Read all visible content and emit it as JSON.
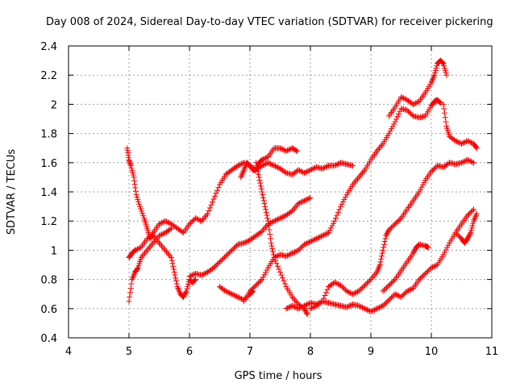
{
  "chart_data": {
    "type": "scatter",
    "title": "Day 008 of 2024, Sidereal Day-to-day VTEC variation (SDTVAR) for receiver pickering",
    "xlabel": "GPS time / hours",
    "ylabel": "SDTVAR / TECUs",
    "xlim": [
      4,
      11
    ],
    "ylim": [
      0.4,
      2.4
    ],
    "xticks": [
      "4",
      "5",
      "6",
      "7",
      "8",
      "9",
      "10",
      "11"
    ],
    "yticks": [
      "0.4",
      "0.6",
      "0.8",
      "1",
      "1.2",
      "1.4",
      "1.6",
      "1.8",
      "2",
      "2.2",
      "2.4"
    ],
    "grid": true,
    "legend": "none",
    "marker": "+",
    "marker_color": "#ff0000",
    "series": [
      {
        "points": [
          [
            4.97,
            1.7
          ],
          [
            5.0,
            1.62
          ],
          [
            5.03,
            1.58
          ],
          [
            5.08,
            1.5
          ],
          [
            5.12,
            1.38
          ],
          [
            5.18,
            1.3
          ],
          [
            5.25,
            1.22
          ],
          [
            5.3,
            1.15
          ],
          [
            5.35,
            1.08
          ],
          [
            5.4,
            1.12
          ],
          [
            5.5,
            1.18
          ],
          [
            5.6,
            1.2
          ],
          [
            5.7,
            1.18
          ],
          [
            5.8,
            1.15
          ],
          [
            5.9,
            1.12
          ],
          [
            6.0,
            1.18
          ],
          [
            6.1,
            1.22
          ],
          [
            6.2,
            1.2
          ],
          [
            6.3,
            1.25
          ],
          [
            6.4,
            1.35
          ],
          [
            6.5,
            1.45
          ],
          [
            6.6,
            1.52
          ],
          [
            6.7,
            1.55
          ],
          [
            6.8,
            1.58
          ],
          [
            6.9,
            1.6
          ],
          [
            7.0,
            1.58
          ],
          [
            7.1,
            1.55
          ],
          [
            7.2,
            1.58
          ],
          [
            7.3,
            1.6
          ],
          [
            7.4,
            1.58
          ],
          [
            7.5,
            1.56
          ],
          [
            7.6,
            1.53
          ],
          [
            7.7,
            1.52
          ],
          [
            7.8,
            1.55
          ],
          [
            7.9,
            1.53
          ],
          [
            8.0,
            1.55
          ],
          [
            8.1,
            1.57
          ],
          [
            8.2,
            1.56
          ],
          [
            8.3,
            1.58
          ],
          [
            8.4,
            1.58
          ],
          [
            8.5,
            1.6
          ],
          [
            8.6,
            1.59
          ],
          [
            8.7,
            1.58
          ]
        ]
      },
      {
        "points": [
          [
            6.85,
            1.5
          ],
          [
            6.9,
            1.55
          ],
          [
            6.95,
            1.6
          ],
          [
            7.0,
            1.58
          ],
          [
            7.05,
            1.55
          ],
          [
            7.1,
            1.55
          ],
          [
            7.15,
            1.6
          ],
          [
            7.2,
            1.62
          ],
          [
            7.3,
            1.64
          ],
          [
            7.4,
            1.7
          ],
          [
            7.5,
            1.7
          ],
          [
            7.6,
            1.68
          ],
          [
            7.7,
            1.7
          ],
          [
            7.78,
            1.68
          ]
        ]
      },
      {
        "points": [
          [
            6.0,
            0.82
          ],
          [
            6.1,
            0.84
          ],
          [
            6.2,
            0.83
          ],
          [
            6.3,
            0.85
          ],
          [
            6.4,
            0.88
          ],
          [
            6.5,
            0.92
          ],
          [
            6.6,
            0.96
          ],
          [
            6.7,
            1.0
          ],
          [
            6.8,
            1.04
          ],
          [
            6.9,
            1.05
          ],
          [
            7.0,
            1.07
          ],
          [
            7.1,
            1.1
          ],
          [
            7.2,
            1.13
          ],
          [
            7.3,
            1.18
          ],
          [
            7.4,
            1.2
          ],
          [
            7.5,
            1.22
          ],
          [
            7.6,
            1.24
          ],
          [
            7.7,
            1.27
          ],
          [
            7.8,
            1.32
          ],
          [
            7.9,
            1.34
          ],
          [
            8.0,
            1.36
          ]
        ]
      },
      {
        "points": [
          [
            5.0,
            0.95
          ],
          [
            5.05,
            0.98
          ],
          [
            5.1,
            1.0
          ],
          [
            5.2,
            1.02
          ],
          [
            5.3,
            1.08
          ],
          [
            5.4,
            1.1
          ],
          [
            5.5,
            1.05
          ],
          [
            5.6,
            1.0
          ],
          [
            5.7,
            0.95
          ],
          [
            5.75,
            0.85
          ],
          [
            5.8,
            0.75
          ],
          [
            5.85,
            0.7
          ],
          [
            5.9,
            0.68
          ],
          [
            5.95,
            0.72
          ],
          [
            6.0,
            0.8
          ],
          [
            6.05,
            0.78
          ],
          [
            6.1,
            0.8
          ]
        ]
      },
      {
        "points": [
          [
            5.0,
            0.65
          ],
          [
            5.05,
            0.8
          ],
          [
            5.1,
            0.85
          ],
          [
            5.15,
            0.88
          ],
          [
            5.2,
            0.95
          ],
          [
            5.3,
            1.0
          ],
          [
            5.4,
            1.05
          ],
          [
            5.5,
            1.1
          ],
          [
            5.6,
            1.12
          ],
          [
            5.7,
            1.15
          ]
        ]
      },
      {
        "points": [
          [
            6.5,
            0.75
          ],
          [
            6.6,
            0.72
          ],
          [
            6.7,
            0.7
          ],
          [
            6.8,
            0.68
          ],
          [
            6.9,
            0.66
          ],
          [
            7.0,
            0.7
          ],
          [
            7.05,
            0.72
          ]
        ]
      },
      {
        "points": [
          [
            7.1,
            1.6
          ],
          [
            7.15,
            1.5
          ],
          [
            7.2,
            1.4
          ],
          [
            7.25,
            1.3
          ],
          [
            7.3,
            1.2
          ],
          [
            7.35,
            1.05
          ],
          [
            7.4,
            0.95
          ],
          [
            7.5,
            0.85
          ],
          [
            7.6,
            0.75
          ],
          [
            7.7,
            0.68
          ],
          [
            7.8,
            0.63
          ],
          [
            7.9,
            0.6
          ],
          [
            7.95,
            0.56
          ]
        ]
      },
      {
        "points": [
          [
            6.9,
            0.65
          ],
          [
            7.0,
            0.72
          ],
          [
            7.1,
            0.76
          ],
          [
            7.2,
            0.8
          ],
          [
            7.3,
            0.88
          ],
          [
            7.4,
            0.95
          ],
          [
            7.5,
            0.97
          ],
          [
            7.6,
            0.96
          ],
          [
            7.7,
            0.98
          ],
          [
            7.8,
            1.0
          ],
          [
            7.9,
            1.04
          ],
          [
            8.0,
            1.06
          ],
          [
            8.1,
            1.08
          ],
          [
            8.2,
            1.1
          ],
          [
            8.3,
            1.12
          ],
          [
            8.4,
            1.2
          ],
          [
            8.5,
            1.3
          ],
          [
            8.6,
            1.38
          ],
          [
            8.7,
            1.45
          ],
          [
            8.8,
            1.5
          ],
          [
            8.9,
            1.55
          ],
          [
            9.0,
            1.62
          ],
          [
            9.1,
            1.68
          ],
          [
            9.2,
            1.73
          ],
          [
            9.3,
            1.8
          ],
          [
            9.4,
            1.88
          ],
          [
            9.5,
            1.97
          ],
          [
            9.6,
            1.96
          ],
          [
            9.7,
            1.92
          ],
          [
            9.8,
            1.91
          ],
          [
            9.9,
            1.92
          ],
          [
            10.0,
            1.99
          ],
          [
            10.05,
            2.02
          ],
          [
            10.1,
            2.03
          ],
          [
            10.15,
            2.01
          ]
        ]
      },
      {
        "points": [
          [
            9.3,
            1.92
          ],
          [
            9.4,
            1.98
          ],
          [
            9.5,
            2.05
          ],
          [
            9.6,
            2.03
          ],
          [
            9.7,
            2.0
          ],
          [
            9.8,
            2.02
          ],
          [
            9.9,
            2.08
          ],
          [
            10.0,
            2.15
          ],
          [
            10.05,
            2.2
          ],
          [
            10.1,
            2.28
          ],
          [
            10.15,
            2.3
          ],
          [
            10.2,
            2.28
          ],
          [
            10.25,
            2.2
          ]
        ]
      },
      {
        "points": [
          [
            10.2,
            2.0
          ],
          [
            10.25,
            1.85
          ],
          [
            10.3,
            1.78
          ],
          [
            10.4,
            1.75
          ],
          [
            10.5,
            1.73
          ],
          [
            10.6,
            1.75
          ],
          [
            10.7,
            1.73
          ],
          [
            10.75,
            1.7
          ]
        ]
      },
      {
        "points": [
          [
            8.0,
            0.6
          ],
          [
            8.1,
            0.62
          ],
          [
            8.2,
            0.65
          ],
          [
            8.3,
            0.75
          ],
          [
            8.4,
            0.78
          ],
          [
            8.5,
            0.76
          ],
          [
            8.6,
            0.72
          ],
          [
            8.7,
            0.7
          ],
          [
            8.8,
            0.72
          ],
          [
            8.9,
            0.76
          ],
          [
            9.0,
            0.8
          ],
          [
            9.1,
            0.85
          ],
          [
            9.15,
            0.9
          ],
          [
            9.2,
            1.0
          ],
          [
            9.25,
            1.1
          ],
          [
            9.3,
            1.14
          ],
          [
            9.4,
            1.18
          ],
          [
            9.5,
            1.22
          ],
          [
            9.6,
            1.28
          ],
          [
            9.7,
            1.34
          ],
          [
            9.8,
            1.4
          ],
          [
            9.9,
            1.48
          ],
          [
            10.0,
            1.54
          ],
          [
            10.1,
            1.58
          ],
          [
            10.2,
            1.57
          ],
          [
            10.3,
            1.6
          ],
          [
            10.4,
            1.59
          ],
          [
            10.5,
            1.6
          ],
          [
            10.6,
            1.62
          ],
          [
            10.7,
            1.6
          ]
        ]
      },
      {
        "points": [
          [
            7.6,
            0.6
          ],
          [
            7.7,
            0.62
          ],
          [
            7.8,
            0.6
          ],
          [
            7.9,
            0.62
          ],
          [
            8.0,
            0.64
          ],
          [
            8.1,
            0.63
          ],
          [
            8.2,
            0.65
          ],
          [
            8.3,
            0.64
          ],
          [
            8.4,
            0.63
          ],
          [
            8.5,
            0.62
          ],
          [
            8.6,
            0.61
          ],
          [
            8.7,
            0.63
          ],
          [
            8.8,
            0.62
          ],
          [
            8.9,
            0.6
          ],
          [
            9.0,
            0.58
          ],
          [
            9.1,
            0.6
          ],
          [
            9.2,
            0.62
          ],
          [
            9.3,
            0.66
          ],
          [
            9.4,
            0.7
          ],
          [
            9.5,
            0.68
          ],
          [
            9.6,
            0.72
          ],
          [
            9.7,
            0.74
          ],
          [
            9.8,
            0.8
          ],
          [
            9.9,
            0.84
          ],
          [
            10.0,
            0.88
          ],
          [
            10.1,
            0.9
          ],
          [
            10.2,
            0.97
          ],
          [
            10.3,
            1.05
          ],
          [
            10.4,
            1.12
          ],
          [
            10.5,
            1.18
          ],
          [
            10.6,
            1.24
          ],
          [
            10.7,
            1.28
          ]
        ]
      },
      {
        "points": [
          [
            9.2,
            0.72
          ],
          [
            9.3,
            0.76
          ],
          [
            9.4,
            0.8
          ],
          [
            9.5,
            0.86
          ],
          [
            9.6,
            0.92
          ],
          [
            9.7,
            0.98
          ],
          [
            9.75,
            1.02
          ],
          [
            9.8,
            1.04
          ],
          [
            9.9,
            1.03
          ],
          [
            9.95,
            1.02
          ]
        ]
      },
      {
        "points": [
          [
            10.4,
            1.12
          ],
          [
            10.5,
            1.08
          ],
          [
            10.55,
            1.05
          ],
          [
            10.6,
            1.08
          ],
          [
            10.65,
            1.12
          ],
          [
            10.7,
            1.2
          ],
          [
            10.75,
            1.25
          ]
        ]
      }
    ]
  }
}
